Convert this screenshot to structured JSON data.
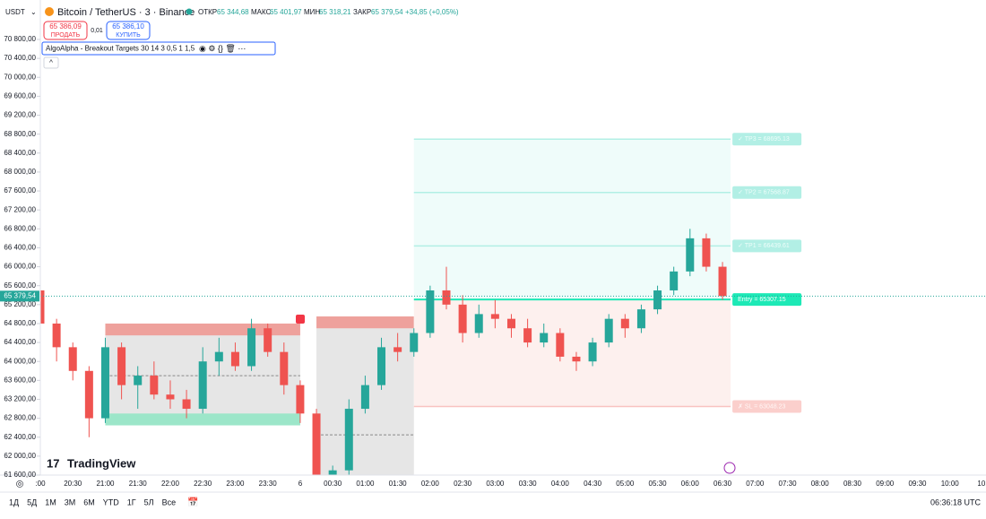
{
  "header": {
    "currency": "USDT",
    "symbol": "Bitcoin / TetherUS · 3 · Binance",
    "open_label": "ОТКР",
    "open": "65 344,68",
    "high_label": "МАКС",
    "high": "65 401,97",
    "low_label": "МИН",
    "low": "65 318,21",
    "close_label": "ЗАКР",
    "close": "65 379,54",
    "change": "+34,85 (+0,05%)"
  },
  "trade": {
    "sell_price": "65 386,09",
    "sell": "ПРОДАТЬ",
    "spread": "0,01",
    "buy_price": "65 386,10",
    "buy": "КУПИТЬ"
  },
  "indicator": "AlgoAlpha - Breakout Targets 30 14 3 0,5 1 1,5",
  "logo": "TradingView",
  "footer": {
    "ranges": [
      "1Д",
      "5Д",
      "1M",
      "3M",
      "6M",
      "YTD",
      "1Г",
      "5Л",
      "Все"
    ],
    "clock": "06:36:18 UTC"
  },
  "chart_data": {
    "type": "candlestick",
    "ylim": [
      61600,
      70800
    ],
    "yticks": [
      {
        "value": 61600,
        "label": "61 600,00"
      },
      {
        "value": 62000,
        "label": "62 000,00"
      },
      {
        "value": 62400,
        "label": "62 400,00"
      },
      {
        "value": 62800,
        "label": "62 800,00"
      },
      {
        "value": 63200,
        "label": "63 200,00"
      },
      {
        "value": 63600,
        "label": "63 600,00"
      },
      {
        "value": 64000,
        "label": "64 000,00"
      },
      {
        "value": 64400,
        "label": "64 400,00"
      },
      {
        "value": 64800,
        "label": "64 800,00"
      },
      {
        "value": 65200,
        "label": "65 200,00"
      },
      {
        "value": 65600,
        "label": "65 600,00"
      },
      {
        "value": 66000,
        "label": "66 000,00"
      },
      {
        "value": 66400,
        "label": "66 400,00"
      },
      {
        "value": 66800,
        "label": "66 800,00"
      },
      {
        "value": 67200,
        "label": "67 200,00"
      },
      {
        "value": 67600,
        "label": "67 600,00"
      },
      {
        "value": 68000,
        "label": "68 000,00"
      },
      {
        "value": 68400,
        "label": "68 400,00"
      },
      {
        "value": 68800,
        "label": "68 800,00"
      },
      {
        "value": 69200,
        "label": "69 200,00"
      },
      {
        "value": 69600,
        "label": "69 600,00"
      },
      {
        "value": 70000,
        "label": "70 000,00"
      },
      {
        "value": 70400,
        "label": "70 400,00"
      },
      {
        "value": 70800,
        "label": "70 800,00"
      }
    ],
    "xticks": [
      ":00",
      "20:30",
      "21:00",
      "21:30",
      "22:00",
      "22:30",
      "23:00",
      "23:30",
      "6",
      "00:30",
      "01:00",
      "01:30",
      "02:00",
      "02:30",
      "03:00",
      "03:30",
      "04:00",
      "04:30",
      "05:00",
      "05:30",
      "06:00",
      "06:30",
      "07:00",
      "07:30",
      "08:00",
      "08:30",
      "09:00",
      "09:30",
      "10:00",
      "10:"
    ],
    "open": [
      65500,
      64800,
      64300,
      63800,
      62800,
      64300,
      63500,
      63700,
      63300,
      63200,
      63000,
      64000,
      64200,
      63900,
      64700,
      64200,
      63500,
      62900,
      61600,
      61700,
      63000,
      63500,
      64300,
      64200,
      64600,
      65500,
      65200,
      64600,
      65000,
      64900,
      64700,
      64400,
      64600,
      64100,
      64000,
      64400,
      64900,
      64700,
      65100,
      65500,
      65900,
      66600,
      66000
    ],
    "high": [
      65650,
      64900,
      64400,
      63900,
      64500,
      64400,
      63900,
      64000,
      63600,
      63400,
      64300,
      64500,
      64400,
      64900,
      64800,
      64400,
      63600,
      63000,
      61800,
      63200,
      63700,
      64500,
      64600,
      64700,
      65600,
      66000,
      65400,
      65200,
      65300,
      65000,
      64900,
      64800,
      64700,
      64200,
      64500,
      65000,
      65000,
      65200,
      65600,
      66000,
      66800,
      66700,
      66100
    ],
    "low": [
      64700,
      64000,
      63600,
      62400,
      62700,
      63200,
      63000,
      63200,
      63000,
      62800,
      62900,
      63700,
      63800,
      63800,
      64100,
      63300,
      62700,
      61600,
      61600,
      61600,
      62900,
      63400,
      64000,
      64100,
      64500,
      65100,
      64400,
      64500,
      64700,
      64500,
      64300,
      64300,
      64000,
      63800,
      63900,
      64300,
      64500,
      64600,
      65000,
      65400,
      65800,
      65900,
      65300
    ],
    "close": [
      64800,
      64300,
      63800,
      62800,
      64300,
      63500,
      63700,
      63300,
      63200,
      63000,
      64000,
      64200,
      63900,
      64700,
      64200,
      63500,
      62900,
      61600,
      61700,
      63000,
      63500,
      64300,
      64200,
      64600,
      65500,
      65200,
      64600,
      65000,
      64900,
      64700,
      64400,
      64600,
      64100,
      64000,
      64400,
      64900,
      64700,
      65100,
      65500,
      65900,
      66600,
      66000,
      65380
    ],
    "up_color": "#26a69a",
    "down_color": "#ef5350",
    "last_price": {
      "value": 65379.54,
      "label": "65 379,54"
    },
    "boxes": [
      {
        "from": 4,
        "to": 16,
        "top": 64800,
        "bottom": 62650,
        "red_bottom": 64550,
        "green_top": 62900,
        "mid": 63700
      },
      {
        "from": 17,
        "to": 23,
        "top": 64950,
        "bottom": 61600,
        "red_bottom": 64700,
        "mid": 62450
      }
    ],
    "levels": {
      "from": 23,
      "to": 42.5,
      "targets": [
        {
          "value": 68695.13,
          "label": "✓ TP3 = 68695.13"
        },
        {
          "value": 67568.87,
          "label": "✓ TP2 = 67568.87"
        },
        {
          "value": 66439.61,
          "label": "✓ TP1 = 66439.61"
        }
      ],
      "entry": {
        "value": 65307.15,
        "label": "Entry = 65307.15"
      },
      "stop": {
        "value": 63048.23,
        "label": "✗ SL = 63048.23"
      }
    }
  }
}
